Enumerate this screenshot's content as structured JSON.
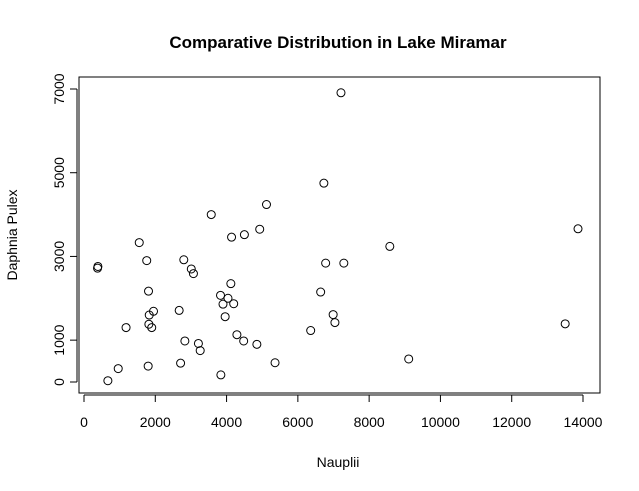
{
  "chart_data": {
    "type": "scatter",
    "title": "Comparative Distribution in Lake Miramar",
    "xlabel": "Nauplii",
    "ylabel": "Daphnia Pulex",
    "xlim": [
      -200,
      14200
    ],
    "ylim": [
      -300,
      7300
    ],
    "xticks": [
      0,
      2000,
      4000,
      6000,
      8000,
      10000,
      12000,
      14000
    ],
    "xtick_labels": [
      "0",
      "2000",
      "4000",
      "6000",
      "8000",
      "10000",
      "12000",
      "14000"
    ],
    "yticks": [
      0,
      1000,
      3000,
      5000,
      7000
    ],
    "ytick_labels": [
      "0",
      "1000",
      "3000",
      "5000",
      "7000"
    ],
    "grid": false,
    "points": [
      {
        "x": 380,
        "y": 2720
      },
      {
        "x": 390,
        "y": 2760
      },
      {
        "x": 670,
        "y": 30
      },
      {
        "x": 960,
        "y": 320
      },
      {
        "x": 1180,
        "y": 1300
      },
      {
        "x": 1550,
        "y": 3330
      },
      {
        "x": 1760,
        "y": 2900
      },
      {
        "x": 1800,
        "y": 380
      },
      {
        "x": 1810,
        "y": 2170
      },
      {
        "x": 1820,
        "y": 1380
      },
      {
        "x": 1830,
        "y": 1600
      },
      {
        "x": 1900,
        "y": 1300
      },
      {
        "x": 1950,
        "y": 1690
      },
      {
        "x": 2670,
        "y": 1710
      },
      {
        "x": 2710,
        "y": 450
      },
      {
        "x": 2800,
        "y": 2920
      },
      {
        "x": 2830,
        "y": 980
      },
      {
        "x": 3010,
        "y": 2700
      },
      {
        "x": 3070,
        "y": 2590
      },
      {
        "x": 3210,
        "y": 920
      },
      {
        "x": 3260,
        "y": 750
      },
      {
        "x": 3570,
        "y": 4000
      },
      {
        "x": 3830,
        "y": 2070
      },
      {
        "x": 3840,
        "y": 170
      },
      {
        "x": 3900,
        "y": 1860
      },
      {
        "x": 3960,
        "y": 1560
      },
      {
        "x": 4040,
        "y": 2000
      },
      {
        "x": 4120,
        "y": 2350
      },
      {
        "x": 4140,
        "y": 3460
      },
      {
        "x": 4200,
        "y": 1870
      },
      {
        "x": 4290,
        "y": 1130
      },
      {
        "x": 4500,
        "y": 3520
      },
      {
        "x": 4480,
        "y": 980
      },
      {
        "x": 4850,
        "y": 900
      },
      {
        "x": 4930,
        "y": 3650
      },
      {
        "x": 5120,
        "y": 4240
      },
      {
        "x": 5360,
        "y": 460
      },
      {
        "x": 6360,
        "y": 1230
      },
      {
        "x": 6640,
        "y": 2150
      },
      {
        "x": 6730,
        "y": 4750
      },
      {
        "x": 6780,
        "y": 2840
      },
      {
        "x": 6990,
        "y": 1610
      },
      {
        "x": 7040,
        "y": 1420
      },
      {
        "x": 7210,
        "y": 6910
      },
      {
        "x": 7290,
        "y": 2840
      },
      {
        "x": 8580,
        "y": 3240
      },
      {
        "x": 9110,
        "y": 550
      },
      {
        "x": 13500,
        "y": 1390
      },
      {
        "x": 13860,
        "y": 3660
      }
    ]
  }
}
